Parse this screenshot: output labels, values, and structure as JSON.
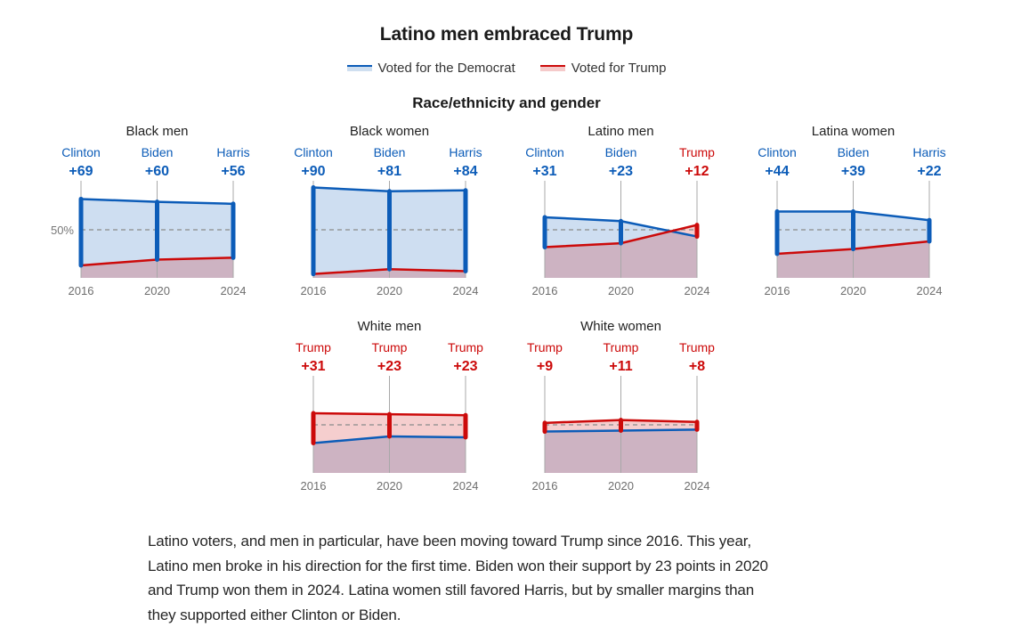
{
  "colors": {
    "democrat": "#0c5cb8",
    "democrat_fill": "#cfdff0",
    "trump": "#cc0a0a",
    "trump_fill": "#f5caca",
    "overlap_fill": "#c9adbb",
    "axis_text": "#6e6e6e",
    "guide": "#a8a8a8"
  },
  "chart_data": {
    "type": "area",
    "title": "Latino men embraced Trump",
    "subtitle": "Race/ethnicity and gender",
    "legend": [
      {
        "label": "Voted for the Democrat",
        "series": "democrat"
      },
      {
        "label": "Voted for Trump",
        "series": "trump"
      }
    ],
    "legend_position": "top-center",
    "xlabel": "",
    "ylabel": "",
    "ylim": [
      0,
      100
    ],
    "reference_line": 50,
    "reference_label": "50%",
    "grid": false,
    "x": [
      "2016",
      "2020",
      "2024"
    ],
    "panels": [
      {
        "title": "Black men",
        "points": [
          {
            "year": "2016",
            "leader": "Clinton",
            "margin_label": "+69",
            "democrat": 82,
            "trump": 13
          },
          {
            "year": "2020",
            "leader": "Biden",
            "margin_label": "+60",
            "democrat": 79,
            "trump": 19
          },
          {
            "year": "2024",
            "leader": "Harris",
            "margin_label": "+56",
            "democrat": 77,
            "trump": 21
          }
        ]
      },
      {
        "title": "Black women",
        "points": [
          {
            "year": "2016",
            "leader": "Clinton",
            "margin_label": "+90",
            "democrat": 94,
            "trump": 4
          },
          {
            "year": "2020",
            "leader": "Biden",
            "margin_label": "+81",
            "democrat": 90,
            "trump": 9
          },
          {
            "year": "2024",
            "leader": "Harris",
            "margin_label": "+84",
            "democrat": 91,
            "trump": 7
          }
        ]
      },
      {
        "title": "Latino men",
        "points": [
          {
            "year": "2016",
            "leader": "Clinton",
            "margin_label": "+31",
            "democrat": 63,
            "trump": 32
          },
          {
            "year": "2020",
            "leader": "Biden",
            "margin_label": "+23",
            "democrat": 59,
            "trump": 36
          },
          {
            "year": "2024",
            "leader": "Trump",
            "margin_label": "+12",
            "democrat": 43,
            "trump": 55
          }
        ]
      },
      {
        "title": "Latina women",
        "points": [
          {
            "year": "2016",
            "leader": "Clinton",
            "margin_label": "+44",
            "democrat": 69,
            "trump": 25
          },
          {
            "year": "2020",
            "leader": "Biden",
            "margin_label": "+39",
            "democrat": 69,
            "trump": 30
          },
          {
            "year": "2024",
            "leader": "Harris",
            "margin_label": "+22",
            "democrat": 60,
            "trump": 38
          }
        ]
      },
      {
        "title": "White men",
        "points": [
          {
            "year": "2016",
            "leader": "Trump",
            "margin_label": "+31",
            "democrat": 31,
            "trump": 62
          },
          {
            "year": "2020",
            "leader": "Trump",
            "margin_label": "+23",
            "democrat": 38,
            "trump": 61
          },
          {
            "year": "2024",
            "leader": "Trump",
            "margin_label": "+23",
            "democrat": 37,
            "trump": 60
          }
        ]
      },
      {
        "title": "White women",
        "points": [
          {
            "year": "2016",
            "leader": "Trump",
            "margin_label": "+9",
            "democrat": 43,
            "trump": 52
          },
          {
            "year": "2020",
            "leader": "Trump",
            "margin_label": "+11",
            "democrat": 44,
            "trump": 55
          },
          {
            "year": "2024",
            "leader": "Trump",
            "margin_label": "+8",
            "democrat": 45,
            "trump": 53
          }
        ]
      }
    ]
  },
  "article": {
    "paragraph_lines": [
      "Latino voters, and men in particular, have been moving toward Trump since 2016. This year,",
      "Latino men broke in his direction for the first time. Biden won their support by 23 points in 2020",
      "and Trump won them in 2024. Latina women still favored Harris, but by smaller margins than",
      "they supported either Clinton or Biden."
    ]
  }
}
